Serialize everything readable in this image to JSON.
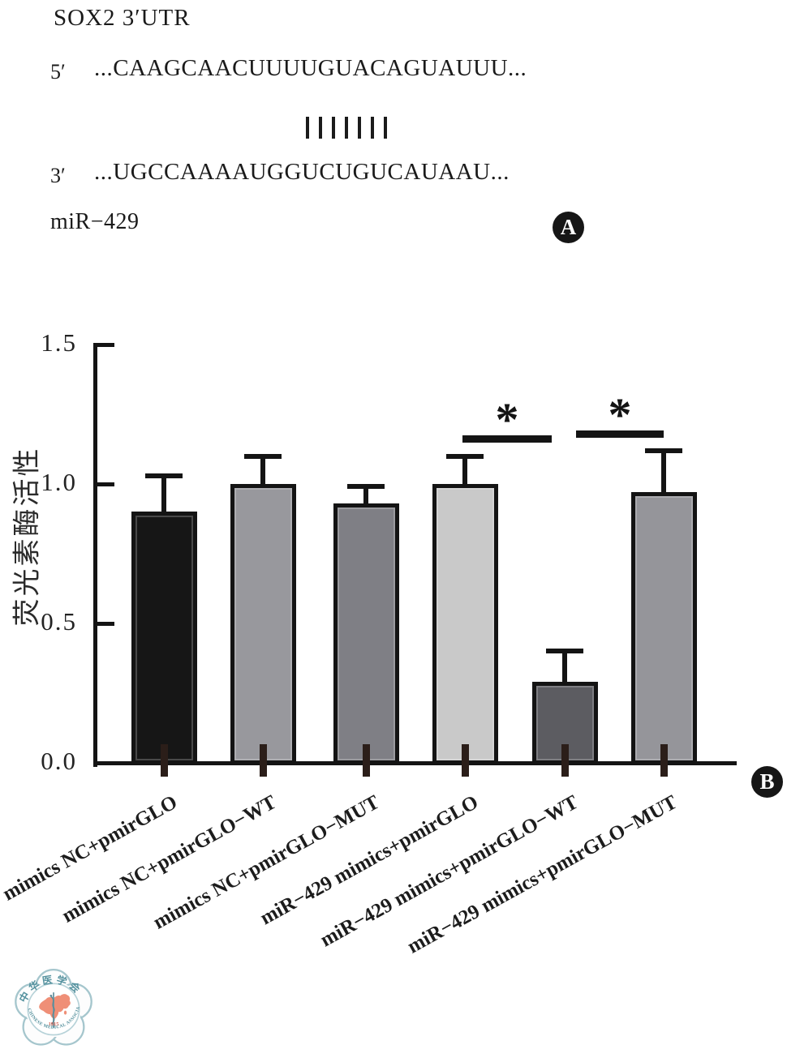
{
  "panel_a": {
    "title": "SOX2 3′UTR",
    "top_strand_end": "5′",
    "top_strand_sequence": "...CAAGCAACUUUUGUACAGUAUUU...",
    "pairing_bars": 7,
    "bottom_strand_end": "3′",
    "bottom_strand_sequence": "...UGCCAAAAUGGUCUGUCAUAAU...",
    "mirna_label": "miR−429",
    "badge": "A"
  },
  "chart_data": {
    "type": "bar",
    "title": "",
    "xlabel": "",
    "ylabel": "荧光素酶活性",
    "ylim": [
      0,
      1.5
    ],
    "yticks": [
      0.0,
      0.5,
      1.0,
      1.5
    ],
    "grid": false,
    "legend": "none",
    "categories": [
      "mimics NC+pmirGLO",
      "mimics NC+pmirGLO−WT",
      "mimics NC+pmirGLO−MUT",
      "miR−429 mimics+pmirGLO",
      "miR−429 mimics+pmirGLO−WT",
      "miR−429 mimics+pmirGLO−MUT"
    ],
    "values": [
      0.9,
      1.0,
      0.93,
      1.0,
      0.29,
      0.97
    ],
    "error_bar_tops": [
      1.03,
      1.1,
      0.99,
      1.1,
      0.4,
      1.12
    ],
    "bar_colors": [
      "#161616",
      "#98989d",
      "#7f7f85",
      "#c9c9c9",
      "#5c5c61",
      "#95959a"
    ],
    "significance": [
      {
        "between": [
          "miR−429 mimics+pmirGLO",
          "miR−429 mimics+pmirGLO−WT"
        ],
        "label": "*"
      },
      {
        "between": [
          "miR−429 mimics+pmirGLO−WT",
          "miR−429 mimics+pmirGLO−MUT"
        ],
        "label": "*"
      }
    ],
    "badge": "B"
  },
  "logo": {
    "name_cn": "中华医学会",
    "name_en": "CHINESE MEDICAL ASSOCIATION",
    "year": "1915",
    "outline_color": "#a5c6cd",
    "map_color": "#ef8f77",
    "text_color": "#55929f",
    "year_color": "#d85f4e"
  }
}
